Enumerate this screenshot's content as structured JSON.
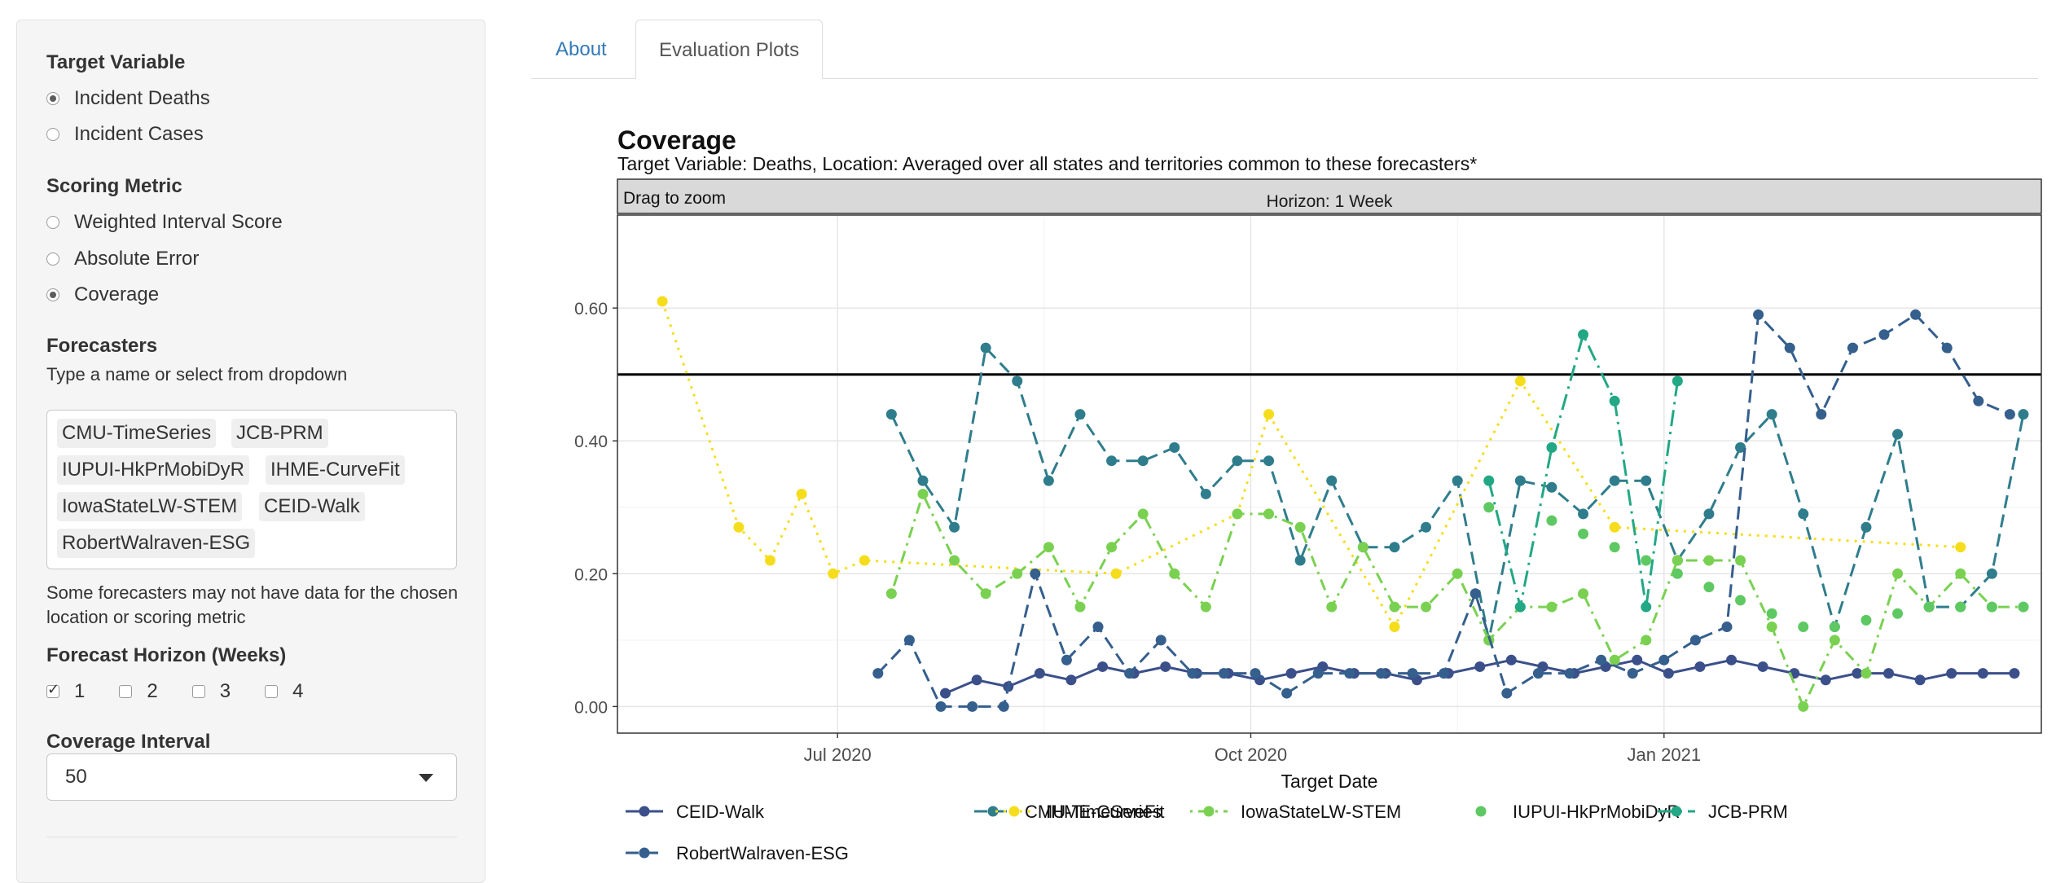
{
  "sidebar": {
    "target_heading": "Target Variable",
    "target_options": [
      "Incident Deaths",
      "Incident Cases"
    ],
    "target_selected": 0,
    "metric_heading": "Scoring Metric",
    "metric_options": [
      "Weighted Interval Score",
      "Absolute Error",
      "Coverage"
    ],
    "metric_selected": 2,
    "forecasters_heading": "Forecasters",
    "forecasters_help": "Type a name or select from dropdown",
    "forecasters_selected": [
      "CMU-TimeSeries",
      "JCB-PRM",
      "IUPUI-HkPrMobiDyR",
      "IHME-CurveFit",
      "IowaStateLW-STEM",
      "CEID-Walk",
      "RobertWalraven-ESG"
    ],
    "forecasters_note": "Some forecasters may not have data for the chosen location or scoring metric",
    "horizon_heading": "Forecast Horizon (Weeks)",
    "horizon_options": [
      "1",
      "2",
      "3",
      "4"
    ],
    "horizon_checked": [
      true,
      false,
      false,
      false
    ],
    "interval_heading": "Coverage Interval",
    "interval_value": "50"
  },
  "tabs": [
    "About",
    "Evaluation Plots"
  ],
  "active_tab": "Evaluation Plots",
  "chart_data": {
    "type": "line",
    "title": "Coverage",
    "subtitle": "Target Variable: Deaths, Location: Averaged over all states and territories common to these forecasters*",
    "toolbar_text": "Drag to zoom",
    "facet_label": "Horizon: 1 Week",
    "xlabel": "Target Date",
    "ylabel": "",
    "xlim": [
      "2020-05-13",
      "2021-03-26"
    ],
    "ylim": [
      -0.04,
      0.74
    ],
    "x_ticks": [
      "2020-07-01",
      "2020-10-01",
      "2021-01-01"
    ],
    "x_tick_labels": [
      "Jul 2020",
      "Oct 2020",
      "Jan 2021"
    ],
    "y_ticks": [
      0,
      0.2,
      0.4,
      0.6
    ],
    "y_tick_labels": [
      "0.00",
      "0.20",
      "0.40",
      "0.60"
    ],
    "reference_line": 0.5,
    "grid": true,
    "legend_position": "bottom",
    "series": [
      {
        "name": "CEID-Walk",
        "color": "#3b4f8a",
        "dash": "solid",
        "x": [
          "2020-07-25",
          "2020-08-01",
          "2020-08-08",
          "2020-08-15",
          "2020-08-22",
          "2020-08-29",
          "2020-09-05",
          "2020-09-12",
          "2020-09-19",
          "2020-09-26",
          "2020-10-03",
          "2020-10-10",
          "2020-10-17",
          "2020-10-24",
          "2020-10-31",
          "2020-11-07",
          "2020-11-14",
          "2020-11-21",
          "2020-11-28",
          "2020-12-05",
          "2020-12-12",
          "2020-12-19",
          "2020-12-26",
          "2021-01-02",
          "2021-01-09",
          "2021-01-16",
          "2021-01-23",
          "2021-01-30",
          "2021-02-06",
          "2021-02-13",
          "2021-02-20",
          "2021-02-27",
          "2021-03-06",
          "2021-03-13",
          "2021-03-20"
        ],
        "y": [
          0.02,
          0.04,
          0.03,
          0.05,
          0.04,
          0.06,
          0.05,
          0.06,
          0.05,
          0.05,
          0.04,
          0.05,
          0.06,
          0.05,
          0.05,
          0.04,
          0.05,
          0.06,
          0.07,
          0.06,
          0.05,
          0.06,
          0.07,
          0.05,
          0.06,
          0.07,
          0.06,
          0.05,
          0.04,
          0.05,
          0.05,
          0.04,
          0.05,
          0.05,
          0.05
        ]
      },
      {
        "name": "CMU-TimeSeries",
        "color": "#2f7d8c",
        "dash": "long",
        "x": [
          "2020-07-13",
          "2020-07-20",
          "2020-07-27",
          "2020-08-03",
          "2020-08-10",
          "2020-08-17",
          "2020-08-24",
          "2020-08-31",
          "2020-09-07",
          "2020-09-14",
          "2020-09-21",
          "2020-09-28",
          "2020-10-05",
          "2020-10-12",
          "2020-10-19",
          "2020-10-26",
          "2020-11-02",
          "2020-11-09",
          "2020-11-16",
          "2020-11-23",
          "2020-11-30",
          "2020-12-07",
          "2020-12-14",
          "2020-12-21",
          "2020-12-28",
          "2021-01-04",
          "2021-01-11",
          "2021-01-18",
          "2021-01-25",
          "2021-02-01",
          "2021-02-08",
          "2021-02-15",
          "2021-02-22",
          "2021-03-01",
          "2021-03-08",
          "2021-03-15",
          "2021-03-22"
        ],
        "y": [
          0.44,
          0.34,
          0.27,
          0.54,
          0.49,
          0.34,
          0.44,
          0.37,
          0.37,
          0.39,
          0.32,
          0.37,
          0.37,
          0.22,
          0.34,
          0.24,
          0.24,
          0.27,
          0.34,
          0.1,
          0.34,
          0.33,
          0.29,
          0.34,
          0.34,
          0.22,
          0.29,
          0.39,
          0.44,
          0.29,
          0.12,
          0.27,
          0.41,
          0.15,
          0.15,
          0.2,
          0.44
        ]
      },
      {
        "name": "IHME-CurveFit",
        "color": "#f5dd1c",
        "dash": "dotted",
        "x": [
          "2020-05-23",
          "2020-06-09",
          "2020-06-16",
          "2020-06-23",
          "2020-06-30",
          "2020-07-07",
          "2020-09-01",
          "2020-09-28",
          "2020-10-05",
          "2020-11-02",
          "2020-11-30",
          "2020-12-21",
          "2021-03-08"
        ],
        "y": [
          0.61,
          0.27,
          0.22,
          0.32,
          0.2,
          0.22,
          0.2,
          0.29,
          0.44,
          0.12,
          0.49,
          0.27,
          0.24
        ]
      },
      {
        "name": "IowaStateLW-STEM",
        "color": "#7ad151",
        "dash": "dashdot",
        "x": [
          "2020-07-13",
          "2020-07-20",
          "2020-07-27",
          "2020-08-03",
          "2020-08-10",
          "2020-08-17",
          "2020-08-24",
          "2020-08-31",
          "2020-09-07",
          "2020-09-14",
          "2020-09-21",
          "2020-09-28",
          "2020-10-05",
          "2020-10-12",
          "2020-10-19",
          "2020-10-26",
          "2020-11-02",
          "2020-11-09",
          "2020-11-16",
          "2020-11-23",
          "2020-11-30",
          "2020-12-07",
          "2020-12-14",
          "2020-12-21",
          "2020-12-28",
          "2021-01-04",
          "2021-01-11",
          "2021-01-18",
          "2021-01-25",
          "2021-02-01",
          "2021-02-08",
          "2021-02-15",
          "2021-02-22",
          "2021-03-01",
          "2021-03-08",
          "2021-03-15",
          "2021-03-22"
        ],
        "y": [
          0.17,
          0.32,
          0.22,
          0.17,
          0.2,
          0.24,
          0.15,
          0.24,
          0.29,
          0.2,
          0.15,
          0.29,
          0.29,
          0.27,
          0.15,
          0.24,
          0.15,
          0.15,
          0.2,
          0.1,
          0.15,
          0.15,
          0.17,
          0.07,
          0.1,
          0.22,
          0.22,
          0.22,
          0.12,
          0.0,
          0.1,
          0.05,
          0.2,
          0.15,
          0.2,
          0.15,
          0.15
        ]
      },
      {
        "name": "IUPUI-HkPrMobiDyR",
        "color": "#5ec962",
        "dash": "none",
        "x": [
          "2020-11-23",
          "2020-12-07",
          "2020-12-14",
          "2020-12-21",
          "2020-12-28",
          "2021-01-04",
          "2021-01-11",
          "2021-01-18",
          "2021-01-25",
          "2021-02-01",
          "2021-02-08",
          "2021-02-15",
          "2021-02-22",
          "2021-03-01",
          "2021-03-08",
          "2021-03-15",
          "2021-03-22"
        ],
        "y": [
          0.3,
          0.28,
          0.26,
          0.24,
          0.22,
          0.2,
          0.18,
          0.16,
          0.14,
          0.12,
          0.12,
          0.13,
          0.14,
          0.15,
          0.15,
          0.15,
          0.15
        ]
      },
      {
        "name": "JCB-PRM",
        "color": "#22a884",
        "dash": "longdashdot",
        "x": [
          "2020-11-23",
          "2020-11-30",
          "2020-12-07",
          "2020-12-14",
          "2020-12-21",
          "2020-12-28",
          "2021-01-04"
        ],
        "y": [
          0.34,
          0.15,
          0.39,
          0.56,
          0.46,
          0.15,
          0.49
        ]
      },
      {
        "name": "RobertWalraven-ESG",
        "color": "#355f8d",
        "dash": "long",
        "x": [
          "2020-07-10",
          "2020-07-17",
          "2020-07-24",
          "2020-07-31",
          "2020-08-07",
          "2020-08-14",
          "2020-08-21",
          "2020-08-28",
          "2020-09-04",
          "2020-09-11",
          "2020-09-18",
          "2020-09-25",
          "2020-10-02",
          "2020-10-09",
          "2020-10-16",
          "2020-10-23",
          "2020-10-30",
          "2020-11-06",
          "2020-11-13",
          "2020-11-20",
          "2020-11-27",
          "2020-12-04",
          "2020-12-11",
          "2020-12-18",
          "2020-12-25",
          "2021-01-01",
          "2021-01-08",
          "2021-01-15",
          "2021-01-22",
          "2021-01-29",
          "2021-02-05",
          "2021-02-12",
          "2021-02-19",
          "2021-02-26",
          "2021-03-05",
          "2021-03-12",
          "2021-03-19"
        ],
        "y": [
          0.05,
          0.1,
          0.0,
          0.0,
          0.0,
          0.2,
          0.07,
          0.12,
          0.05,
          0.1,
          0.05,
          0.05,
          0.05,
          0.02,
          0.05,
          0.05,
          0.05,
          0.05,
          0.05,
          0.17,
          0.02,
          0.05,
          0.05,
          0.07,
          0.05,
          0.07,
          0.1,
          0.12,
          0.59,
          0.54,
          0.44,
          0.54,
          0.56,
          0.59,
          0.54,
          0.46,
          0.44
        ]
      }
    ]
  }
}
